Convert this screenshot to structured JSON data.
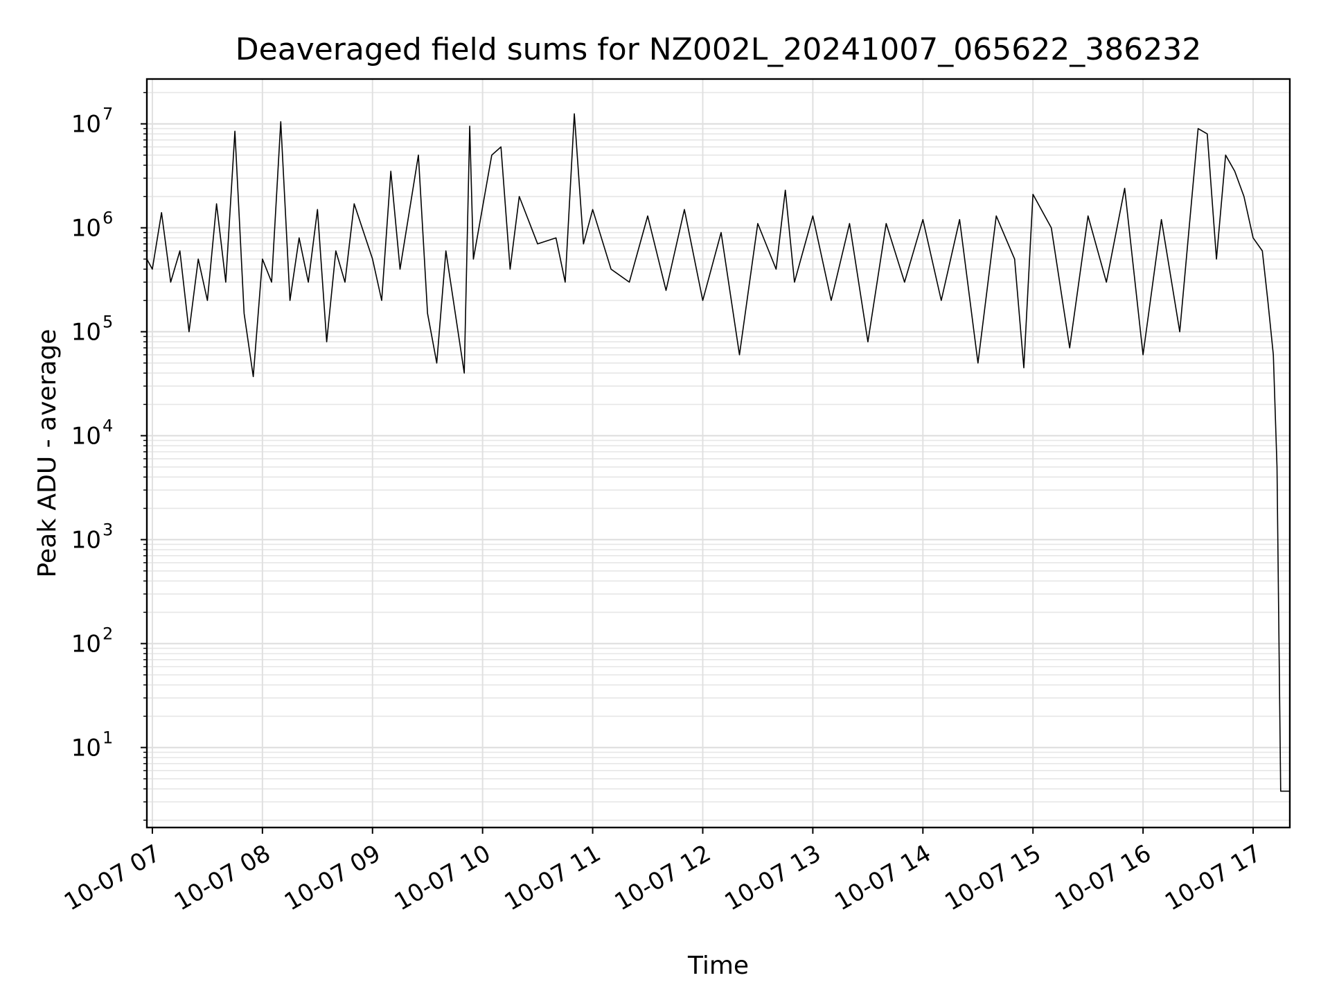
{
  "chart_data": {
    "type": "line",
    "title": "Deaveraged field sums for NZ002L_20241007_065622_386232",
    "xlabel": "Time",
    "ylabel": "Peak ADU - average",
    "yscale": "log",
    "ylim": [
      1.7,
      27000000
    ],
    "xlim": [
      "2024-10-07 06:57",
      "2024-10-07 17:20"
    ],
    "grid": true,
    "x_ticks": [
      "10-07 07",
      "10-07 08",
      "10-07 09",
      "10-07 10",
      "10-07 11",
      "10-07 12",
      "10-07 13",
      "10-07 14",
      "10-07 15",
      "10-07 16",
      "10-07 17"
    ],
    "y_ticks": [
      {
        "base": "10",
        "exp": "1"
      },
      {
        "base": "10",
        "exp": "2"
      },
      {
        "base": "10",
        "exp": "3"
      },
      {
        "base": "10",
        "exp": "4"
      },
      {
        "base": "10",
        "exp": "5"
      },
      {
        "base": "10",
        "exp": "6"
      },
      {
        "base": "10",
        "exp": "7"
      }
    ],
    "series": [
      {
        "color": "#000000",
        "points": [
          [
            "2024-10-07 06:57",
            500000
          ],
          [
            "2024-10-07 07:00",
            400000
          ],
          [
            "2024-10-07 07:05",
            1400000
          ],
          [
            "2024-10-07 07:10",
            300000
          ],
          [
            "2024-10-07 07:15",
            600000
          ],
          [
            "2024-10-07 07:20",
            100000
          ],
          [
            "2024-10-07 07:25",
            500000
          ],
          [
            "2024-10-07 07:30",
            200000
          ],
          [
            "2024-10-07 07:35",
            1700000
          ],
          [
            "2024-10-07 07:40",
            300000
          ],
          [
            "2024-10-07 07:45",
            8500000
          ],
          [
            "2024-10-07 07:50",
            150000
          ],
          [
            "2024-10-07 07:55",
            37000
          ],
          [
            "2024-10-07 08:00",
            500000
          ],
          [
            "2024-10-07 08:05",
            300000
          ],
          [
            "2024-10-07 08:10",
            10500000
          ],
          [
            "2024-10-07 08:15",
            200000
          ],
          [
            "2024-10-07 08:20",
            800000
          ],
          [
            "2024-10-07 08:25",
            300000
          ],
          [
            "2024-10-07 08:30",
            1500000
          ],
          [
            "2024-10-07 08:35",
            80000
          ],
          [
            "2024-10-07 08:40",
            600000
          ],
          [
            "2024-10-07 08:45",
            300000
          ],
          [
            "2024-10-07 08:50",
            1700000
          ],
          [
            "2024-10-07 09:00",
            500000
          ],
          [
            "2024-10-07 09:05",
            200000
          ],
          [
            "2024-10-07 09:10",
            3500000
          ],
          [
            "2024-10-07 09:15",
            400000
          ],
          [
            "2024-10-07 09:25",
            5000000
          ],
          [
            "2024-10-07 09:30",
            150000
          ],
          [
            "2024-10-07 09:35",
            50000
          ],
          [
            "2024-10-07 09:40",
            600000
          ],
          [
            "2024-10-07 09:50",
            40000
          ],
          [
            "2024-10-07 09:53",
            9500000
          ],
          [
            "2024-10-07 09:55",
            500000
          ],
          [
            "2024-10-07 10:05",
            5000000
          ],
          [
            "2024-10-07 10:10",
            6000000
          ],
          [
            "2024-10-07 10:15",
            400000
          ],
          [
            "2024-10-07 10:20",
            2000000
          ],
          [
            "2024-10-07 10:30",
            700000
          ],
          [
            "2024-10-07 10:40",
            800000
          ],
          [
            "2024-10-07 10:45",
            300000
          ],
          [
            "2024-10-07 10:50",
            12500000
          ],
          [
            "2024-10-07 10:55",
            700000
          ],
          [
            "2024-10-07 11:00",
            1500000
          ],
          [
            "2024-10-07 11:10",
            400000
          ],
          [
            "2024-10-07 11:20",
            300000
          ],
          [
            "2024-10-07 11:30",
            1300000
          ],
          [
            "2024-10-07 11:40",
            250000
          ],
          [
            "2024-10-07 11:50",
            1500000
          ],
          [
            "2024-10-07 12:00",
            200000
          ],
          [
            "2024-10-07 12:10",
            900000
          ],
          [
            "2024-10-07 12:20",
            60000
          ],
          [
            "2024-10-07 12:30",
            1100000
          ],
          [
            "2024-10-07 12:40",
            400000
          ],
          [
            "2024-10-07 12:45",
            2300000
          ],
          [
            "2024-10-07 12:50",
            300000
          ],
          [
            "2024-10-07 13:00",
            1300000
          ],
          [
            "2024-10-07 13:10",
            200000
          ],
          [
            "2024-10-07 13:20",
            1100000
          ],
          [
            "2024-10-07 13:30",
            80000
          ],
          [
            "2024-10-07 13:40",
            1100000
          ],
          [
            "2024-10-07 13:50",
            300000
          ],
          [
            "2024-10-07 14:00",
            1200000
          ],
          [
            "2024-10-07 14:10",
            200000
          ],
          [
            "2024-10-07 14:20",
            1200000
          ],
          [
            "2024-10-07 14:30",
            50000
          ],
          [
            "2024-10-07 14:40",
            1300000
          ],
          [
            "2024-10-07 14:50",
            500000
          ],
          [
            "2024-10-07 14:55",
            45000
          ],
          [
            "2024-10-07 15:00",
            2100000
          ],
          [
            "2024-10-07 15:10",
            1000000
          ],
          [
            "2024-10-07 15:20",
            70000
          ],
          [
            "2024-10-07 15:30",
            1300000
          ],
          [
            "2024-10-07 15:40",
            300000
          ],
          [
            "2024-10-07 15:50",
            2400000
          ],
          [
            "2024-10-07 16:00",
            60000
          ],
          [
            "2024-10-07 16:10",
            1200000
          ],
          [
            "2024-10-07 16:20",
            100000
          ],
          [
            "2024-10-07 16:30",
            9000000
          ],
          [
            "2024-10-07 16:35",
            8000000
          ],
          [
            "2024-10-07 16:40",
            500000
          ],
          [
            "2024-10-07 16:45",
            5000000
          ],
          [
            "2024-10-07 16:50",
            3500000
          ],
          [
            "2024-10-07 16:55",
            2000000
          ],
          [
            "2024-10-07 17:00",
            800000
          ],
          [
            "2024-10-07 17:05",
            600000
          ],
          [
            "2024-10-07 17:08",
            200000
          ],
          [
            "2024-10-07 17:11",
            60000
          ],
          [
            "2024-10-07 17:13",
            5000
          ],
          [
            "2024-10-07 17:15",
            3.8
          ],
          [
            "2024-10-07 17:20",
            3.8
          ]
        ]
      }
    ]
  }
}
